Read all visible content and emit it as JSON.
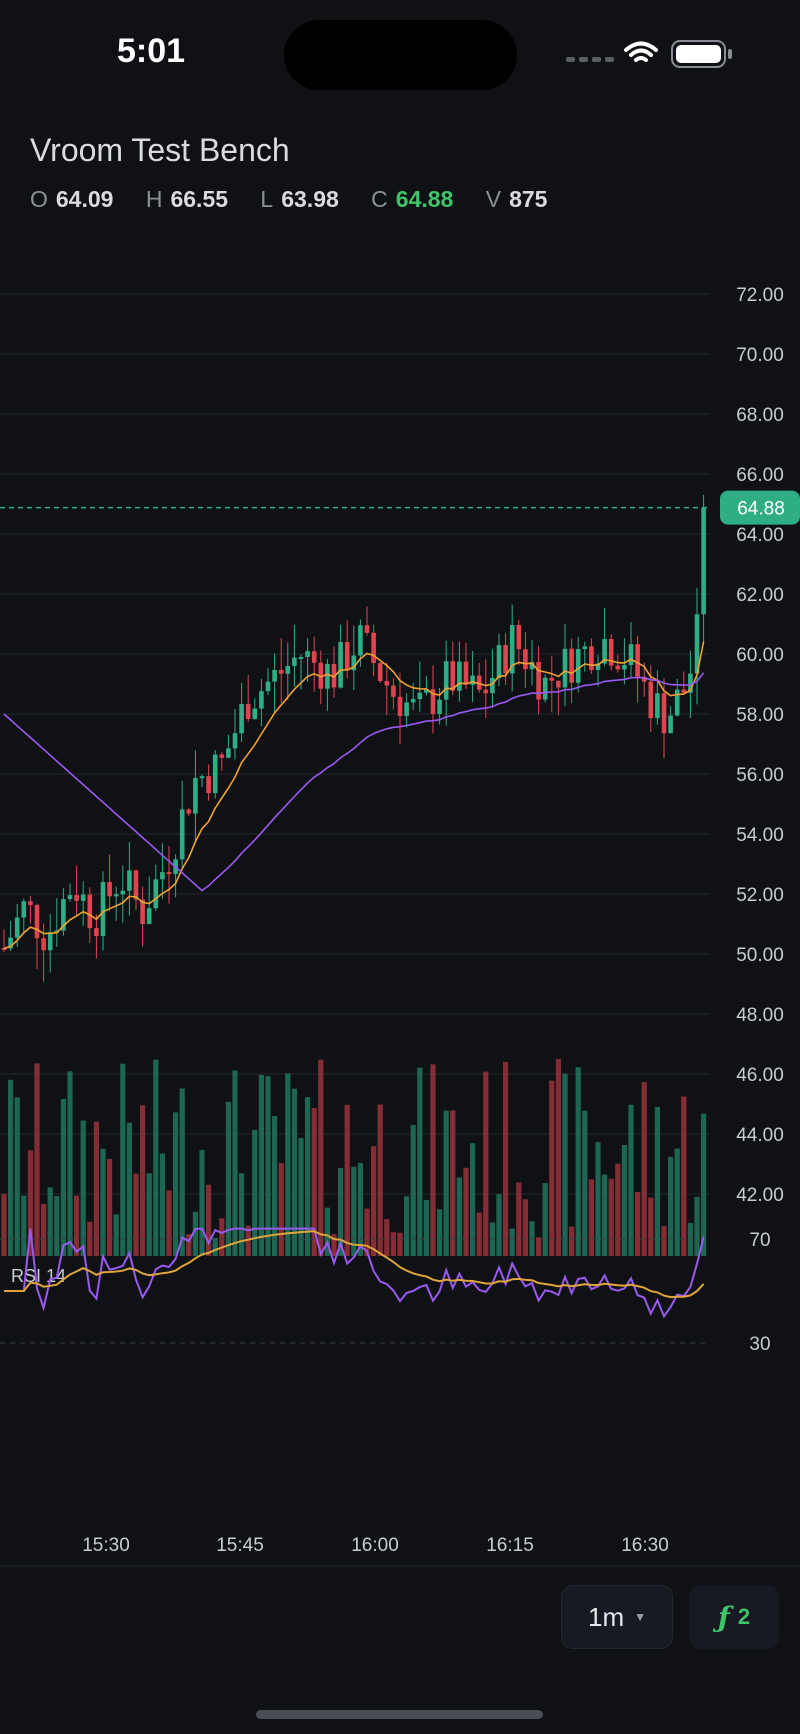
{
  "status_bar": {
    "time": "5:01"
  },
  "header": {
    "title": "Vroom Test Bench",
    "ohlc": [
      {
        "key": "O",
        "value": "64.09",
        "up": false
      },
      {
        "key": "H",
        "value": "66.55",
        "up": false
      },
      {
        "key": "L",
        "value": "63.98",
        "up": false
      },
      {
        "key": "C",
        "value": "64.88",
        "up": true
      },
      {
        "key": "V",
        "value": "875",
        "up": false
      }
    ]
  },
  "colors": {
    "up": "#2fae86",
    "down": "#e0454f",
    "ema_fast": "#f0a232",
    "ema_slow": "#9a59f0",
    "rsi": "#9a59f0",
    "rsi_signal": "#e0a53a",
    "last_price": "#2fae86",
    "grid": "#23262d",
    "accent_green": "#3ec56a"
  },
  "chart_data": {
    "type": "candlestick",
    "price_axis": {
      "ticks": [
        "72.00",
        "70.00",
        "68.00",
        "66.00",
        "64.00",
        "62.00",
        "60.00",
        "58.00",
        "56.00",
        "54.00",
        "52.00",
        "50.00",
        "48.00",
        "46.00",
        "44.00",
        "42.00"
      ],
      "ylim": [
        40,
        72.5
      ]
    },
    "last_price": "64.88",
    "time_axis": [
      "15:30",
      "15:45",
      "16:00",
      "16:15",
      "16:30"
    ],
    "rsi": {
      "label": "RSI 14",
      "levels": [
        "70",
        "30"
      ]
    }
  },
  "toolbar": {
    "timeframe_label": "1m",
    "indicator_count": "2"
  }
}
